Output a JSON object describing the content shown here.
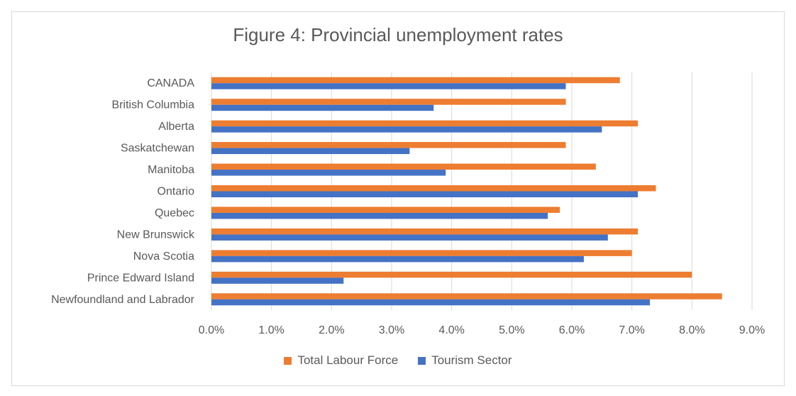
{
  "chart_data": {
    "type": "bar",
    "orientation": "horizontal",
    "title": "Figure 4: Provincial unemployment rates",
    "categories": [
      "CANADA",
      "British Columbia",
      "Alberta",
      "Saskatchewan",
      "Manitoba",
      "Ontario",
      "Quebec",
      "New Brunswick",
      "Nova Scotia",
      "Prince Edward Island",
      "Newfoundland and Labrador"
    ],
    "series": [
      {
        "name": "Total Labour Force",
        "color": "#ED7D31",
        "values": [
          6.8,
          5.9,
          7.1,
          5.9,
          6.4,
          7.4,
          5.8,
          7.1,
          7.0,
          8.0,
          8.5
        ]
      },
      {
        "name": "Tourism Sector",
        "color": "#4472C4",
        "values": [
          5.9,
          3.7,
          6.5,
          3.3,
          3.9,
          7.1,
          5.6,
          6.6,
          6.2,
          2.2,
          7.3
        ]
      }
    ],
    "xlim": [
      0,
      9
    ],
    "x_ticks": [
      "0.0%",
      "1.0%",
      "2.0%",
      "3.0%",
      "4.0%",
      "5.0%",
      "6.0%",
      "7.0%",
      "8.0%",
      "9.0%"
    ],
    "grid": "vertical",
    "legend_position": "bottom"
  }
}
